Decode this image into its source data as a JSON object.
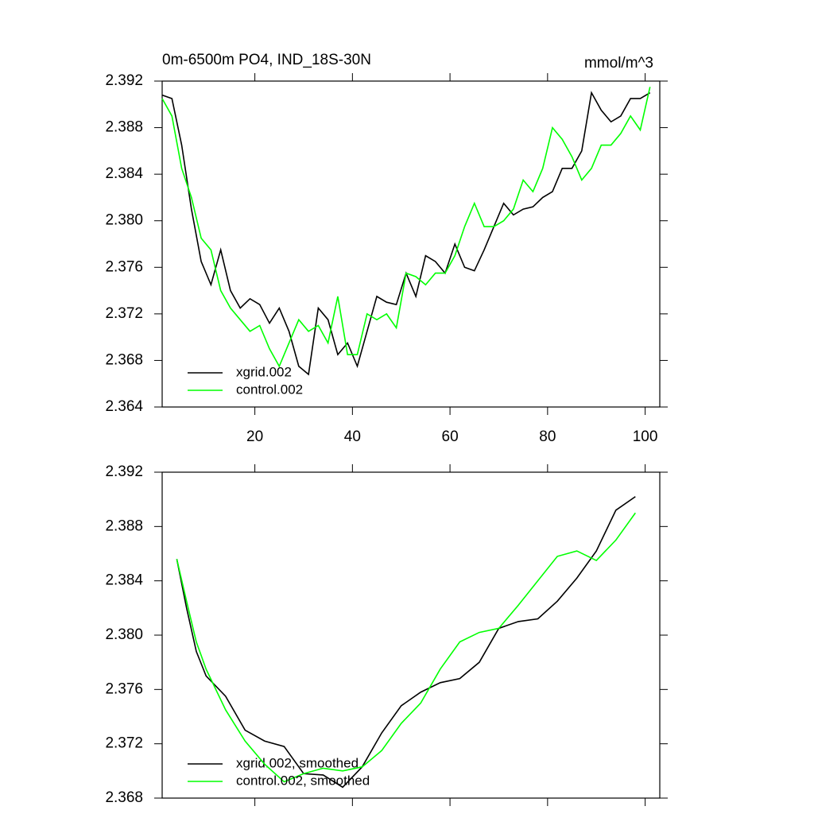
{
  "chart_data": [
    {
      "type": "line",
      "title": "0m-6500m PO4, IND_18S-30N",
      "units": "mmol/m^3",
      "x": [
        1,
        3,
        5,
        7,
        9,
        11,
        13,
        15,
        17,
        19,
        21,
        23,
        25,
        27,
        29,
        31,
        33,
        35,
        37,
        39,
        41,
        43,
        45,
        47,
        49,
        51,
        53,
        55,
        57,
        59,
        61,
        63,
        65,
        67,
        69,
        71,
        73,
        75,
        77,
        79,
        81,
        83,
        85,
        87,
        89,
        91,
        93,
        95,
        97,
        99,
        101
      ],
      "series": [
        {
          "name": "xgrid.002",
          "color": "#000000",
          "values": [
            2.3908,
            2.3905,
            2.3865,
            2.381,
            2.3765,
            2.3745,
            2.3775,
            2.374,
            2.3725,
            2.3733,
            2.3728,
            2.3712,
            2.3725,
            2.3705,
            2.3675,
            2.3668,
            2.3725,
            2.3715,
            2.3685,
            2.3695,
            2.3675,
            2.3705,
            2.3735,
            2.373,
            2.3728,
            2.3755,
            2.3735,
            2.377,
            2.3765,
            2.3755,
            2.378,
            2.376,
            2.3757,
            2.3775,
            2.3795,
            2.3815,
            2.3805,
            2.381,
            2.3812,
            2.382,
            2.3825,
            2.3845,
            2.3845,
            2.386,
            2.391,
            2.3895,
            2.3885,
            2.389,
            2.3905,
            2.3905,
            2.391
          ]
        },
        {
          "name": "control.002",
          "color": "#00ff00",
          "values": [
            2.3905,
            2.389,
            2.3845,
            2.382,
            2.3785,
            2.3775,
            2.374,
            2.3725,
            2.3715,
            2.3705,
            2.371,
            2.369,
            2.3675,
            2.3695,
            2.3715,
            2.3705,
            2.371,
            2.3695,
            2.3735,
            2.3685,
            2.3685,
            2.372,
            2.3715,
            2.372,
            2.3708,
            2.3755,
            2.3752,
            2.3745,
            2.3755,
            2.3755,
            2.377,
            2.3795,
            2.3815,
            2.3795,
            2.3795,
            2.38,
            2.381,
            2.3835,
            2.3825,
            2.3845,
            2.388,
            2.387,
            2.3855,
            2.3835,
            2.3845,
            2.3865,
            2.3865,
            2.3875,
            2.389,
            2.3878,
            2.3915
          ]
        }
      ],
      "xlim": [
        1,
        103
      ],
      "ylim": [
        2.364,
        2.392
      ],
      "xticks": [
        20,
        40,
        60,
        80,
        100
      ],
      "yticks": [
        2.364,
        2.368,
        2.372,
        2.376,
        {
          "value": 2.38,
          "label": "2.380"
        },
        2.384,
        2.388,
        2.392
      ],
      "legend": "lower-left"
    },
    {
      "type": "line",
      "x": [
        4,
        6,
        8,
        10,
        14,
        18,
        22,
        26,
        30,
        34,
        38,
        42,
        46,
        50,
        54,
        58,
        62,
        66,
        70,
        74,
        78,
        82,
        86,
        90,
        94,
        98
      ],
      "series": [
        {
          "name": "xgrid.002, smoothed",
          "color": "#000000",
          "values": [
            2.3856,
            2.382,
            2.3788,
            2.377,
            2.3755,
            2.373,
            2.3722,
            2.3718,
            2.3698,
            2.3697,
            2.3688,
            2.3703,
            2.3728,
            2.3748,
            2.3758,
            2.3765,
            2.3768,
            2.378,
            2.3805,
            2.381,
            2.3812,
            2.3825,
            2.3842,
            2.3862,
            2.3892,
            2.3902
          ]
        },
        {
          "name": "control.002, smoothed",
          "color": "#00ff00",
          "values": [
            2.3856,
            2.3825,
            2.3795,
            2.3775,
            2.3745,
            2.3722,
            2.3705,
            2.3692,
            2.3698,
            2.3702,
            2.37,
            2.3703,
            2.3715,
            2.3735,
            2.375,
            2.3775,
            2.3795,
            2.3802,
            2.3805,
            2.3822,
            2.384,
            2.3858,
            2.3862,
            2.3855,
            2.387,
            2.389
          ]
        }
      ],
      "xlim": [
        1,
        103
      ],
      "ylim": [
        2.368,
        2.392
      ],
      "yticks": [
        2.368,
        2.372,
        2.376,
        {
          "value": 2.38,
          "label": "2.380"
        },
        2.384,
        2.388,
        2.392
      ],
      "legend": "lower-left"
    }
  ]
}
